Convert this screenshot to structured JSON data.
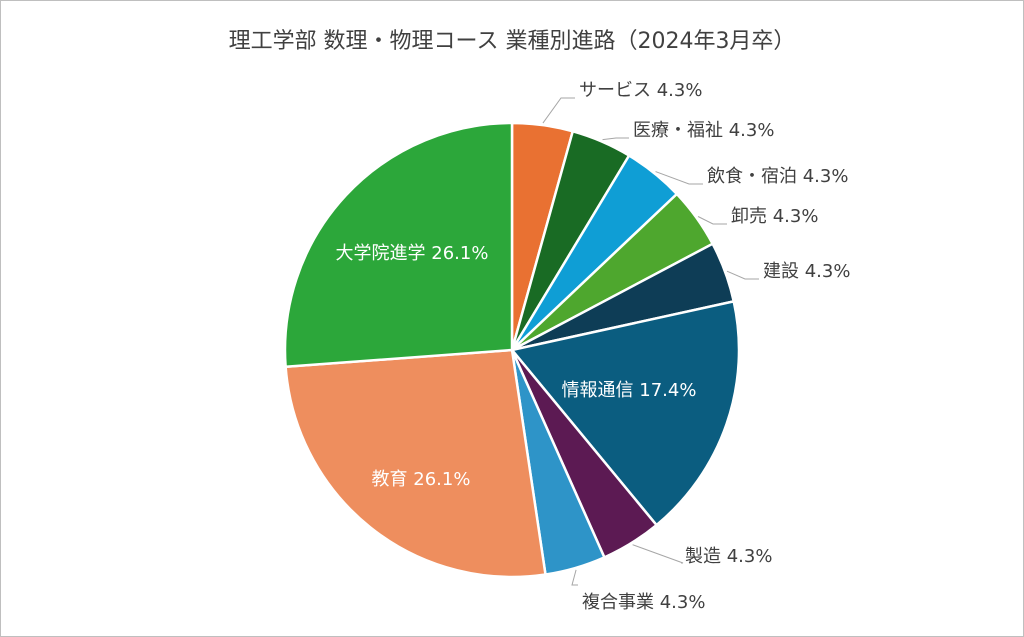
{
  "chart_data": {
    "type": "pie",
    "title": "理工学部 数理・物理コース 業種別進路（2024年3月卒）",
    "slices": [
      {
        "label": "サービス",
        "pct_label": "4.3%",
        "value": 4.3,
        "color": "#E97132"
      },
      {
        "label": "医療・福祉",
        "pct_label": "4.3%",
        "value": 4.3,
        "color": "#196B24"
      },
      {
        "label": "飲食・宿泊",
        "pct_label": "4.3%",
        "value": 4.3,
        "color": "#0F9ED5"
      },
      {
        "label": "卸売",
        "pct_label": "4.3%",
        "value": 4.3,
        "color": "#4EA72E"
      },
      {
        "label": "建設",
        "pct_label": "4.3%",
        "value": 4.3,
        "color": "#0E3D56"
      },
      {
        "label": "情報通信",
        "pct_label": "17.4%",
        "value": 17.4,
        "color": "#0B5D80"
      },
      {
        "label": "製造",
        "pct_label": "4.3%",
        "value": 4.3,
        "color": "#5C1A53"
      },
      {
        "label": "複合事業",
        "pct_label": "4.3%",
        "value": 4.3,
        "color": "#2E94C8"
      },
      {
        "label": "教育",
        "pct_label": "26.1%",
        "value": 26.1,
        "color": "#EE8E5E"
      },
      {
        "label": "大学院進学",
        "pct_label": "26.1%",
        "value": 26.1,
        "color": "#2CA73A"
      }
    ]
  }
}
